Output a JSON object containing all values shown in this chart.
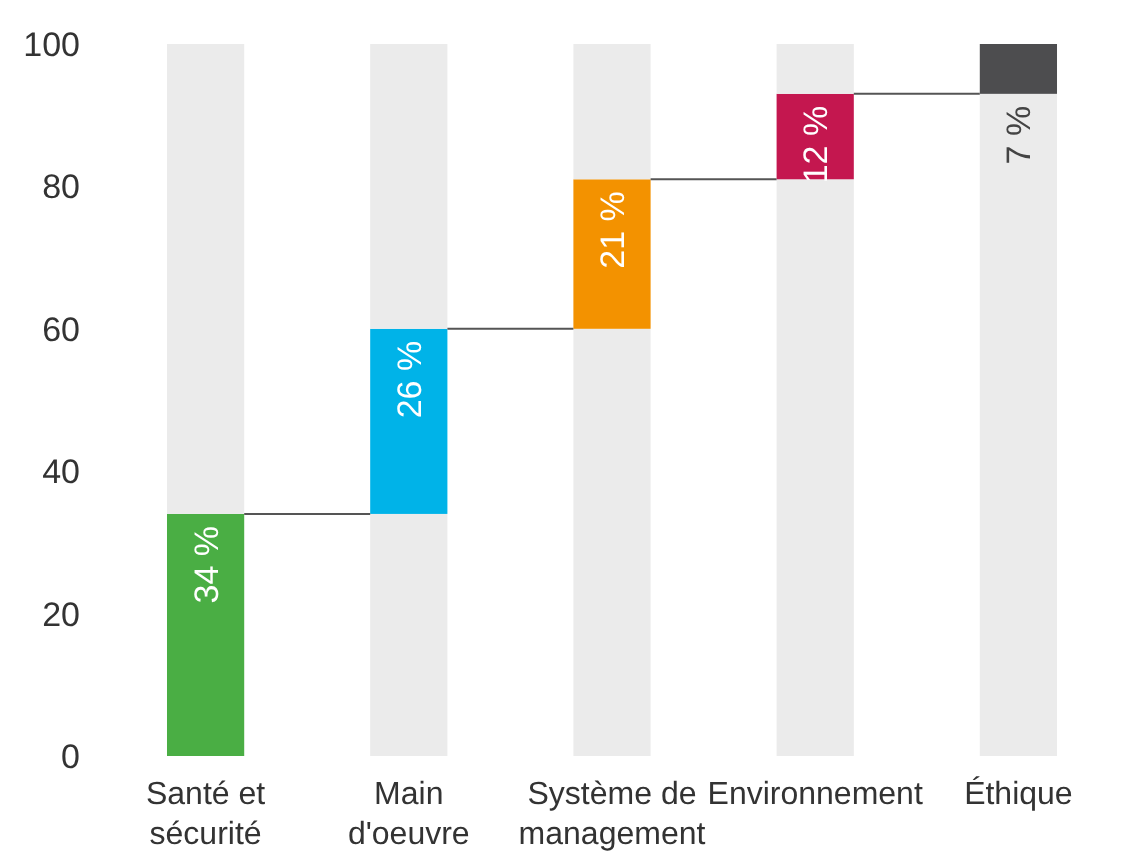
{
  "chart_data": {
    "type": "bar",
    "stacked": true,
    "categories": [
      "Santé et sécurité",
      "Main d'oeuvre",
      "Système de management",
      "Environnement",
      "Éthique"
    ],
    "series": [
      {
        "color": "#ebebeb",
        "values": [
          0,
          34,
          60,
          81,
          93
        ]
      },
      {
        "colors": [
          "#4aae44",
          "#00b3e8",
          "#f39200",
          "#c4174f",
          "#4d4d4f"
        ],
        "values": [
          34,
          26,
          21,
          12,
          7
        ],
        "value_labels": [
          "34 %",
          "26 %",
          "21 %",
          "12 %",
          "7 %"
        ]
      },
      {
        "color": "#ebebeb",
        "values": [
          66,
          40,
          19,
          7,
          0
        ]
      }
    ],
    "ylim": [
      0,
      100
    ],
    "yticks": [
      0,
      20,
      40,
      60,
      80,
      100
    ],
    "grid": false
  }
}
